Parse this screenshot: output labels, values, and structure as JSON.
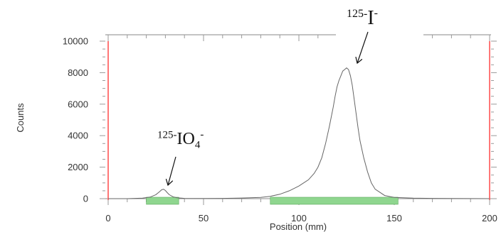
{
  "chart_data": {
    "type": "line",
    "title": "",
    "xlabel": "Position (mm)",
    "ylabel": "Counts",
    "xlim": [
      0,
      200
    ],
    "ylim": [
      0,
      10000
    ],
    "x_ticks": [
      0,
      50,
      100,
      150,
      200
    ],
    "x_tick_labels": [
      "0",
      "50",
      "100",
      "150",
      "200"
    ],
    "y_ticks": [
      0,
      2000,
      4000,
      6000,
      8000,
      10000
    ],
    "y_tick_labels": [
      "0",
      "2000",
      "4000",
      "6000",
      "8000",
      "10000"
    ],
    "grid": false,
    "series": [
      {
        "x": [
          0,
          10,
          18,
          22,
          25,
          27,
          28,
          29,
          30,
          31,
          32,
          34,
          36,
          40,
          50,
          60,
          70,
          80,
          85,
          90,
          95,
          100,
          105,
          108,
          110,
          112,
          114,
          116,
          118,
          119,
          120,
          121,
          122,
          123,
          124,
          125,
          126,
          127,
          128,
          129,
          130,
          131,
          132,
          134,
          136,
          138,
          140,
          145,
          150,
          160,
          170,
          180,
          190,
          200
        ],
        "values": [
          0,
          0,
          30,
          100,
          250,
          450,
          560,
          600,
          520,
          380,
          250,
          120,
          60,
          20,
          10,
          20,
          40,
          80,
          150,
          280,
          500,
          800,
          1200,
          1600,
          2000,
          2600,
          3500,
          4600,
          5800,
          6500,
          7100,
          7500,
          7800,
          8100,
          8200,
          8300,
          8200,
          7800,
          7200,
          6300,
          5400,
          4500,
          3700,
          2600,
          1700,
          1000,
          600,
          200,
          80,
          30,
          20,
          10,
          5,
          0
        ]
      }
    ],
    "bands": [
      {
        "x_start": 20,
        "x_end": 37,
        "color": "#8fd68f"
      },
      {
        "x_start": 85,
        "x_end": 152,
        "color": "#8fd68f"
      }
    ],
    "markers": [
      {
        "x": 0,
        "color": "#ff7777"
      },
      {
        "x": 200,
        "color": "#ff7777"
      }
    ],
    "annotations": [
      {
        "mass": "125-",
        "species": "IO",
        "subscript": "4",
        "charge": "-",
        "point_x": 31,
        "point_y": 600
      },
      {
        "mass": "125-",
        "species": "I",
        "subscript": "",
        "charge": "-",
        "point_x": 125,
        "point_y": 8300
      }
    ]
  }
}
